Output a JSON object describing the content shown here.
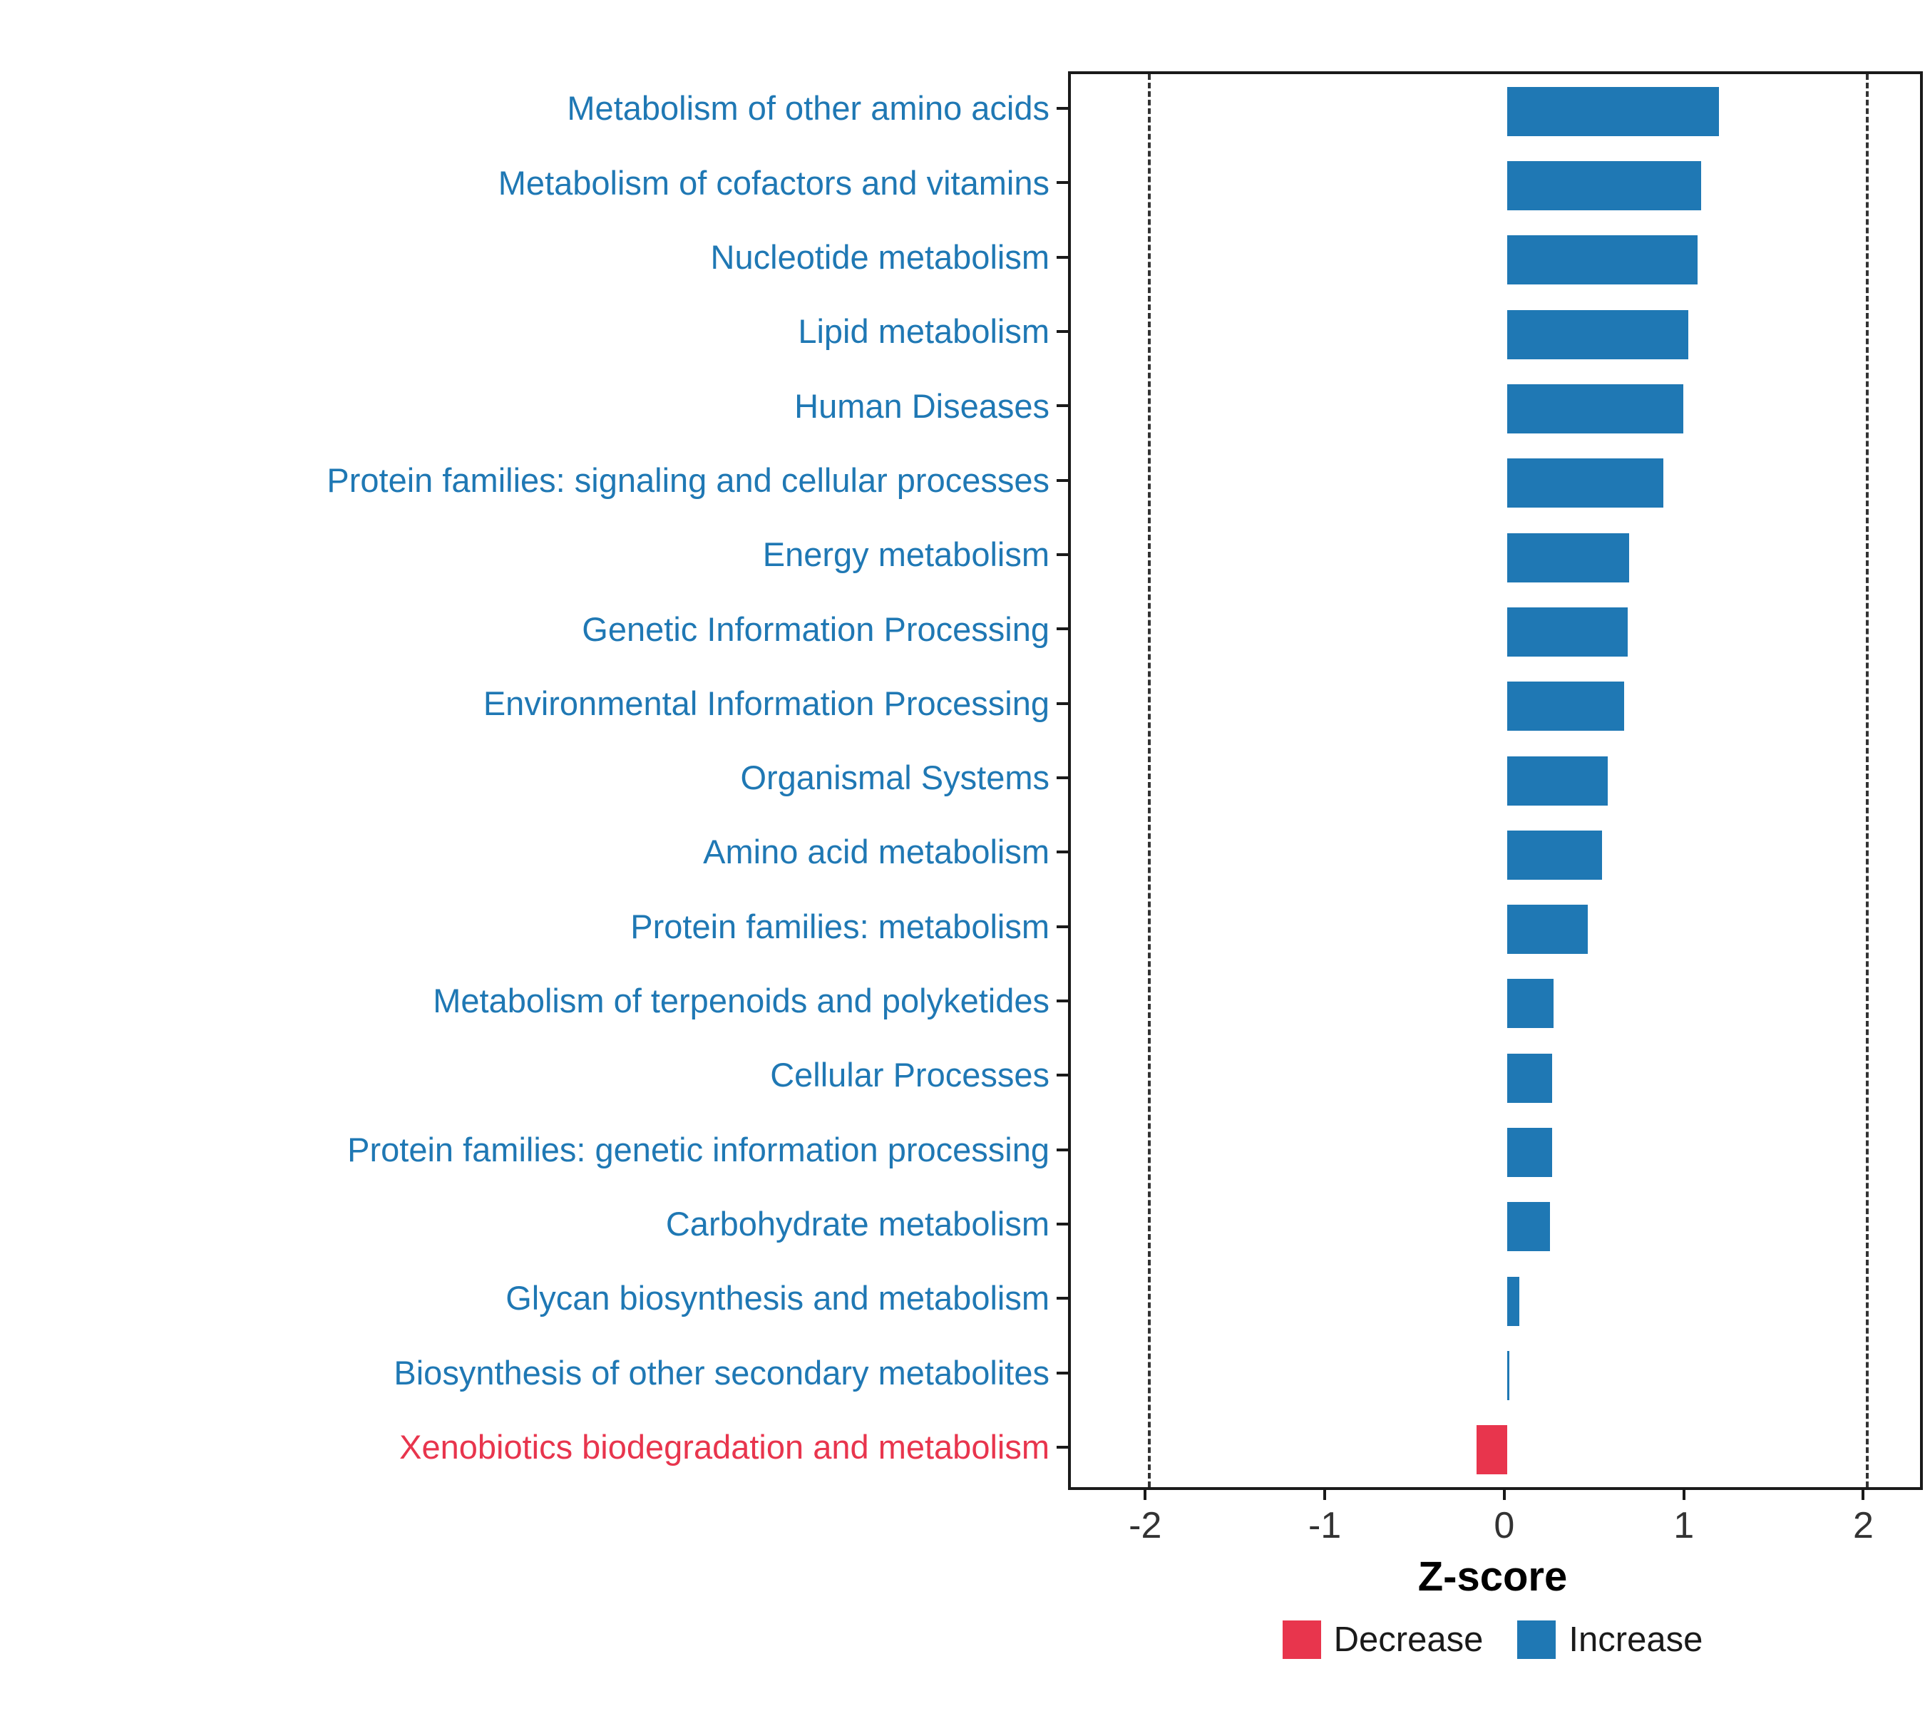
{
  "chart_data": {
    "type": "bar",
    "orientation": "horizontal",
    "title": "",
    "xlabel": "Z-score",
    "ylabel": "",
    "xlim": [
      -2.43,
      2.3
    ],
    "x_ticks": [
      -2,
      -1,
      0,
      1,
      2
    ],
    "x_tick_labels": [
      "-2",
      "-1",
      "0",
      "1",
      "2"
    ],
    "reference_lines_dashed": [
      -2,
      2
    ],
    "grid": "off",
    "categories": [
      "Metabolism of other amino acids",
      "Metabolism of cofactors and vitamins",
      "Nucleotide metabolism",
      "Lipid metabolism",
      "Human Diseases",
      "Protein families: signaling and cellular processes",
      "Energy metabolism",
      "Genetic Information Processing",
      "Environmental Information Processing",
      "Organismal Systems",
      "Amino acid metabolism",
      "Protein families: metabolism",
      "Metabolism of terpenoids and polyketides",
      "Cellular Processes",
      "Protein families: genetic information processing",
      "Carbohydrate metabolism",
      "Glycan biosynthesis and metabolism",
      "Biosynthesis of other secondary metabolites",
      "Xenobiotics biodegradation and metabolism"
    ],
    "values": [
      1.18,
      1.08,
      1.06,
      1.01,
      0.98,
      0.87,
      0.68,
      0.67,
      0.65,
      0.56,
      0.53,
      0.45,
      0.26,
      0.25,
      0.25,
      0.24,
      0.07,
      0.01,
      -0.17
    ],
    "directions": [
      "increase",
      "increase",
      "increase",
      "increase",
      "increase",
      "increase",
      "increase",
      "increase",
      "increase",
      "increase",
      "increase",
      "increase",
      "increase",
      "increase",
      "increase",
      "increase",
      "increase",
      "increase",
      "decrease"
    ],
    "colors": {
      "increase": "#1F78B4",
      "decrease": "#E8354D"
    },
    "legend": {
      "position": "bottom-center",
      "items": [
        {
          "label": "Decrease",
          "color": "#E8354D"
        },
        {
          "label": "Increase",
          "color": "#1F78B4"
        }
      ]
    }
  }
}
